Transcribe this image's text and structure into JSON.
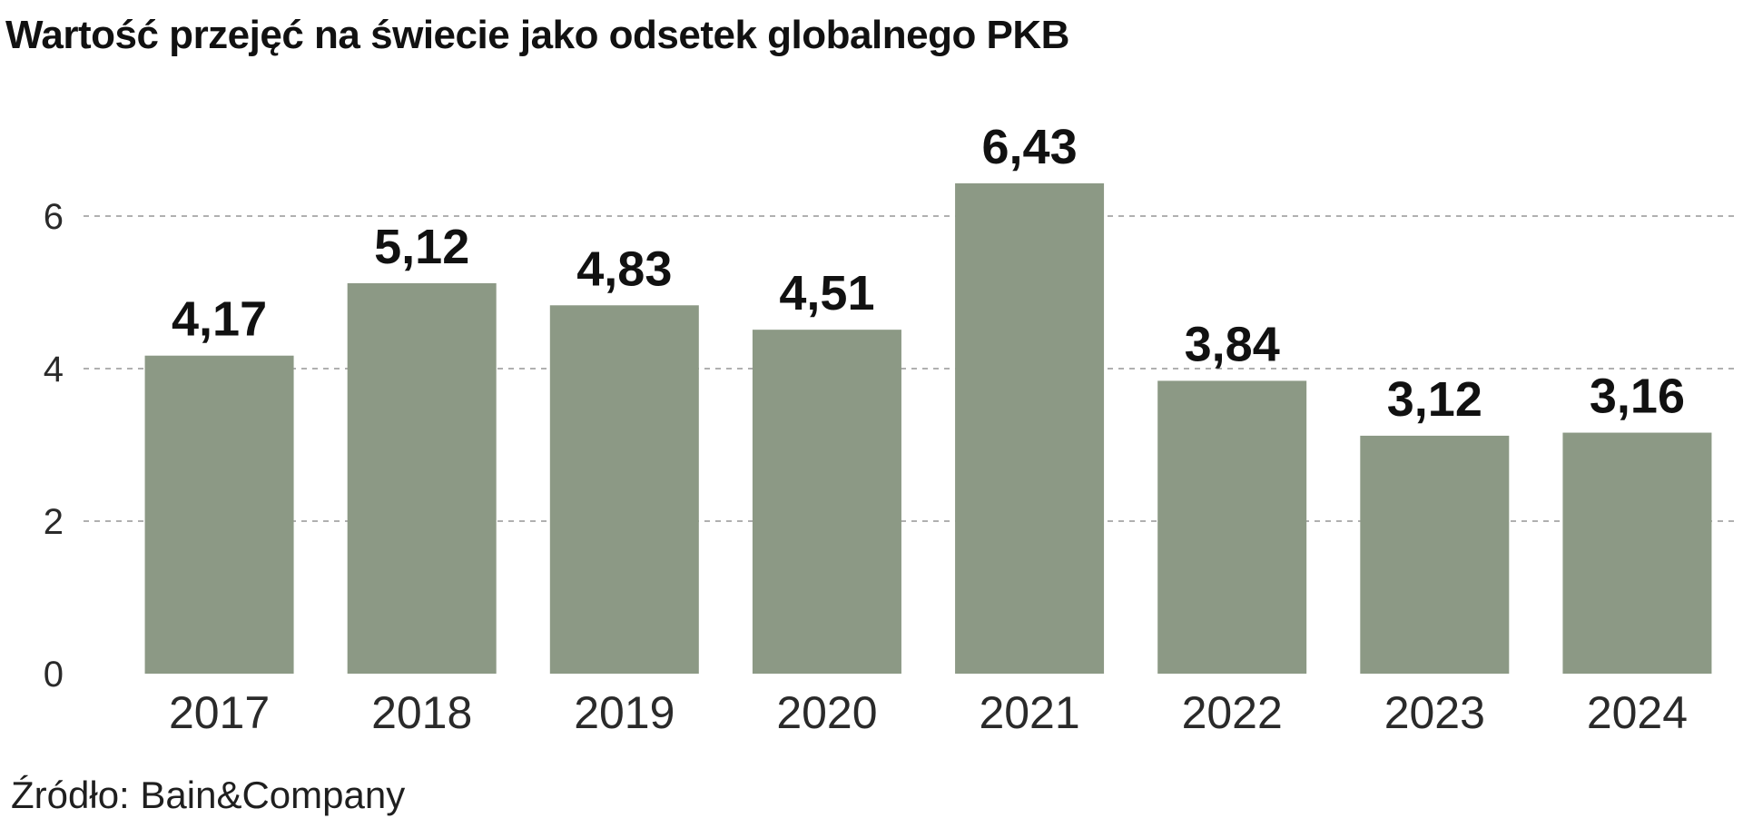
{
  "chart_data": {
    "type": "bar",
    "title": "Wartość przejęć na świecie jako odsetek globalnego PKB",
    "categories": [
      "2017",
      "2018",
      "2019",
      "2020",
      "2021",
      "2022",
      "2023",
      "2024"
    ],
    "values": [
      4.17,
      5.12,
      4.83,
      4.51,
      6.43,
      3.84,
      3.12,
      3.16
    ],
    "data_labels": [
      "4,17",
      "5,12",
      "4,83",
      "4,51",
      "6,43",
      "3,84",
      "3,12",
      "3,16"
    ],
    "yticks": [
      0,
      2,
      4,
      6
    ],
    "ylim": [
      0,
      6.5
    ],
    "xlabel": "",
    "ylabel": "",
    "grid": true,
    "bar_color": "#8c9985",
    "grid_color": "#b0b0b0"
  },
  "source": "Źródło: Bain&Company"
}
